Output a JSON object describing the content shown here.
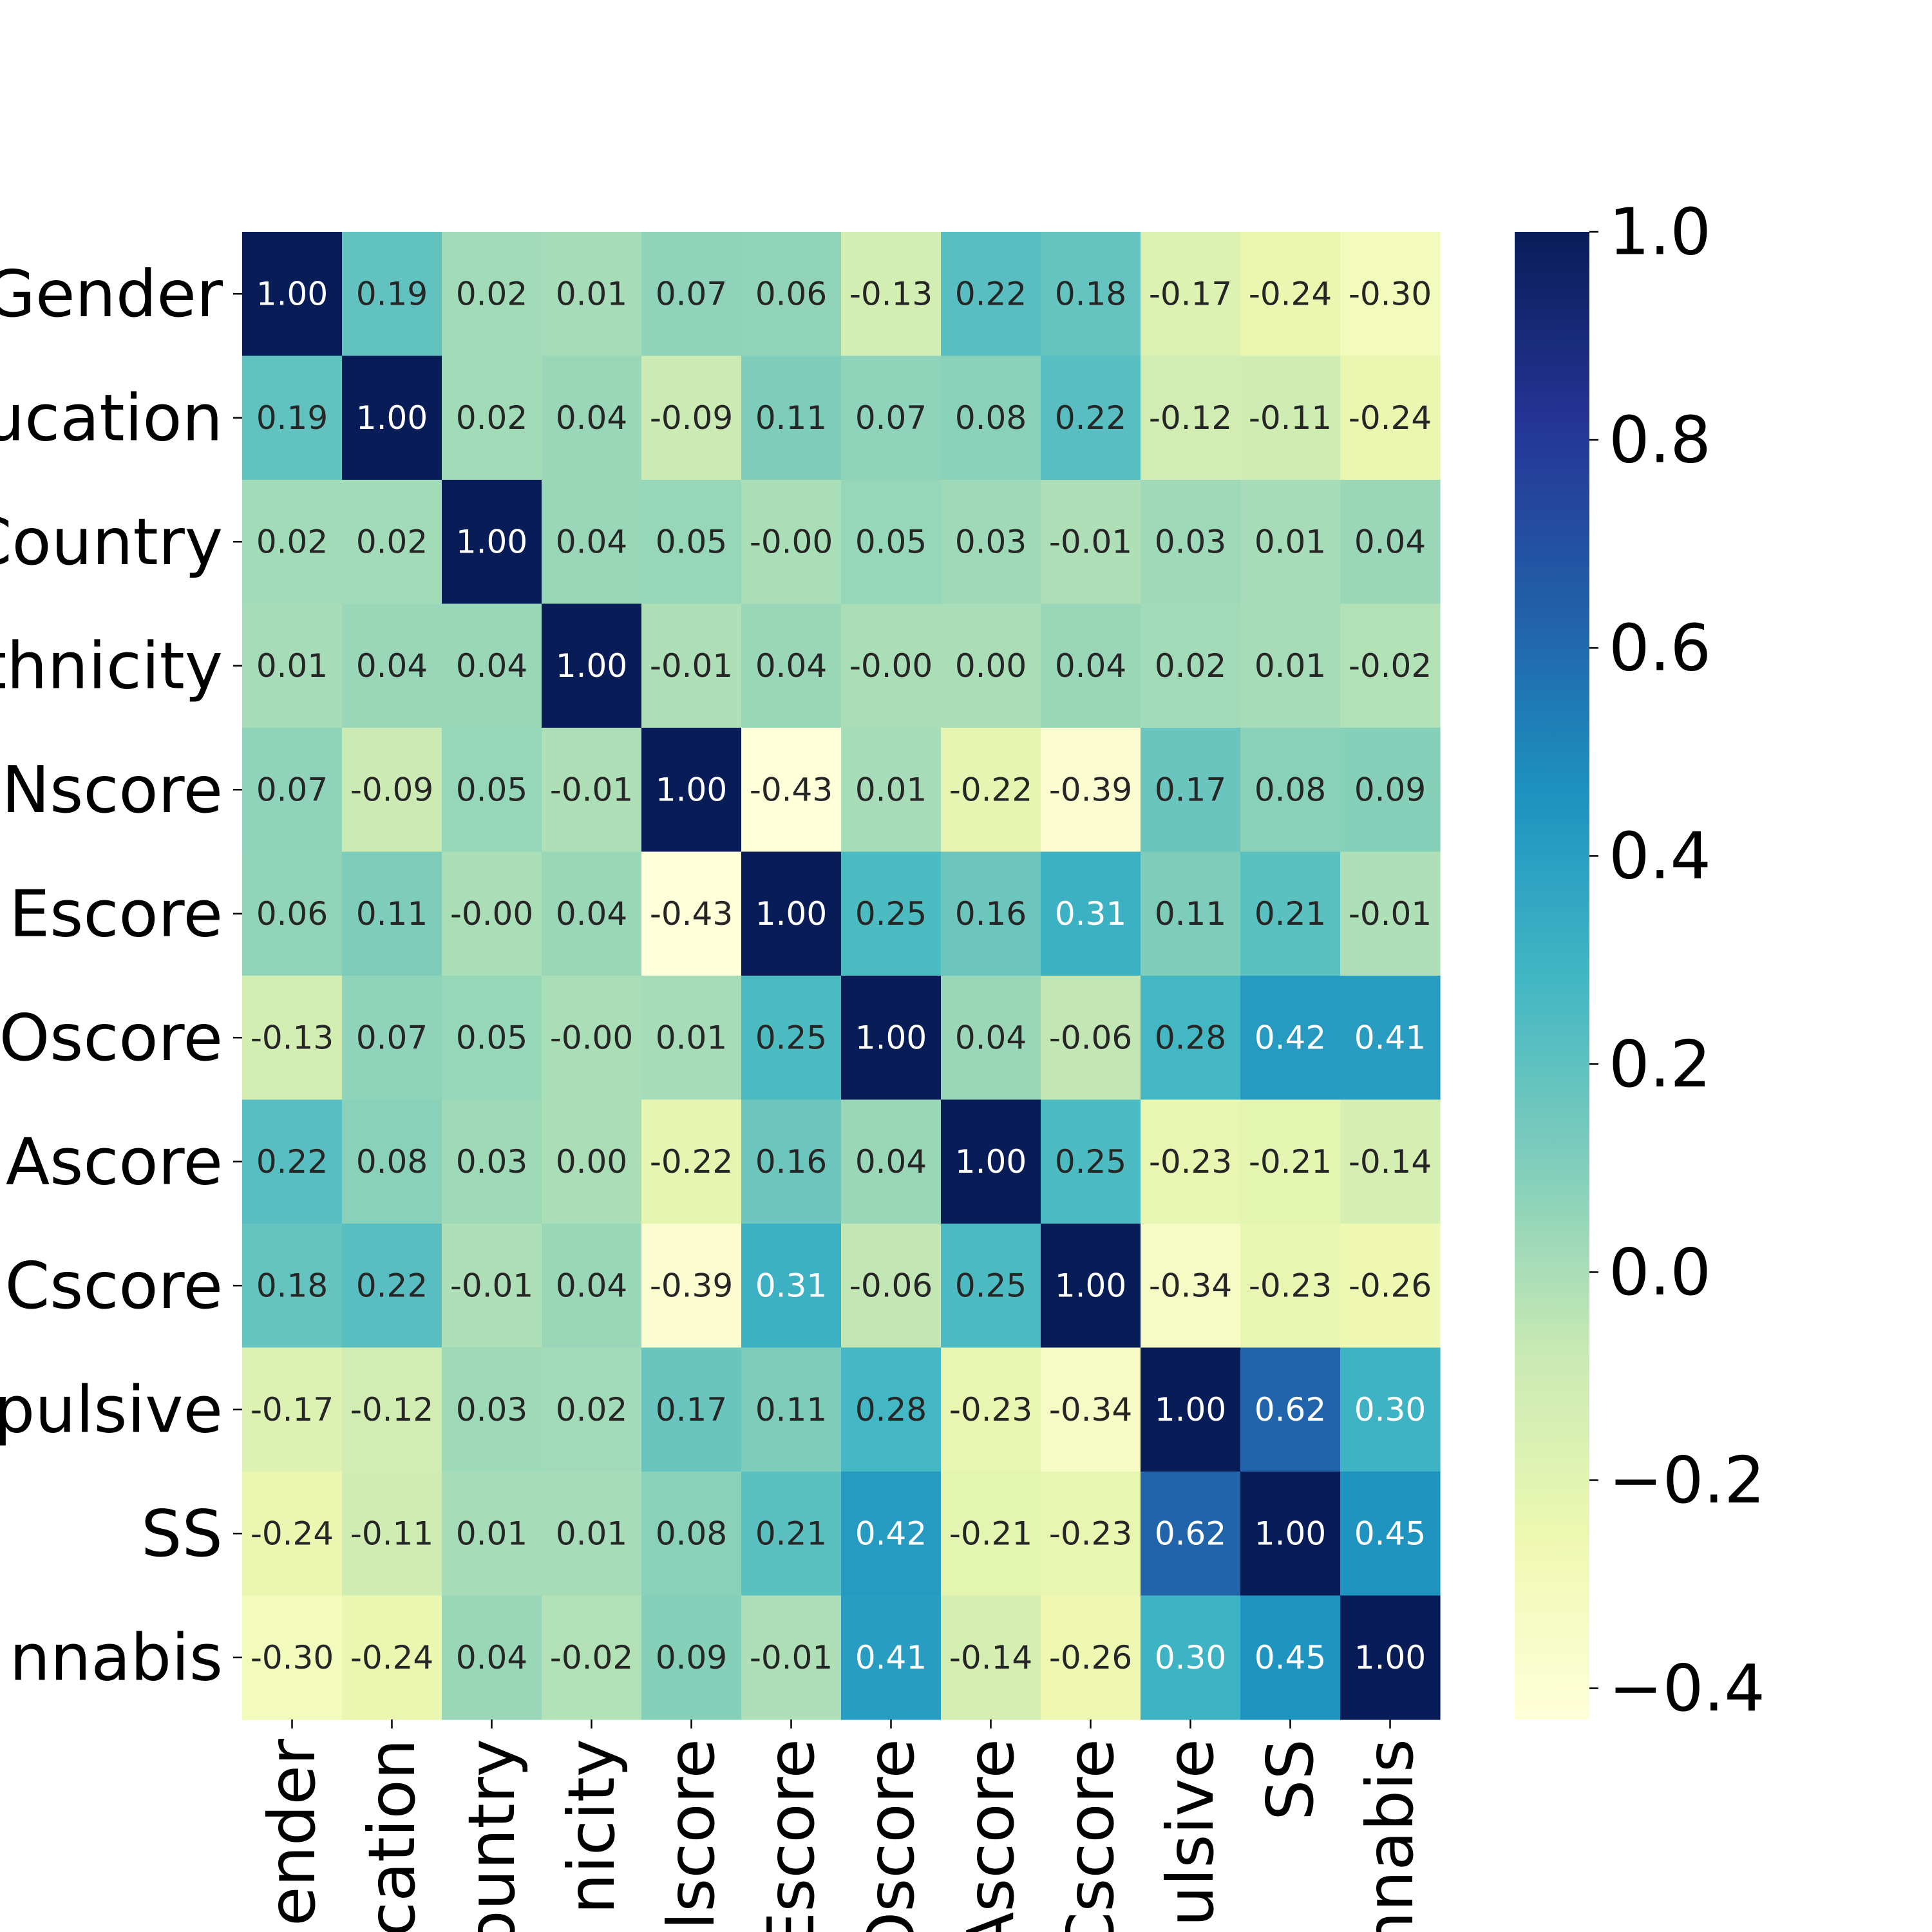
{
  "chart_data": {
    "type": "heatmap",
    "title": "",
    "xlabel": "",
    "ylabel": "",
    "row_labels": [
      "Gender",
      "ucation",
      "Country",
      "thnicity",
      "Nscore",
      "Escore",
      "Oscore",
      "Ascore",
      "Cscore",
      "pulsive",
      "SS",
      "nnabis"
    ],
    "col_labels": [
      "ender",
      "cation",
      "ountry",
      "nicity",
      "lscore",
      "Escore",
      "Oscore",
      "Ascore",
      "Cscore",
      "ulsive",
      "SS",
      "nnabis"
    ],
    "values": [
      [
        1.0,
        0.19,
        0.02,
        0.01,
        0.07,
        0.06,
        -0.13,
        0.22,
        0.18,
        -0.17,
        -0.24,
        -0.3
      ],
      [
        0.19,
        1.0,
        0.02,
        0.04,
        -0.09,
        0.11,
        0.07,
        0.08,
        0.22,
        -0.12,
        -0.11,
        -0.24
      ],
      [
        0.02,
        0.02,
        1.0,
        0.04,
        0.05,
        -0.0,
        0.05,
        0.03,
        -0.01,
        0.03,
        0.01,
        0.04
      ],
      [
        0.01,
        0.04,
        0.04,
        1.0,
        -0.01,
        0.04,
        -0.0,
        0.0,
        0.04,
        0.02,
        0.01,
        -0.02
      ],
      [
        0.07,
        -0.09,
        0.05,
        -0.01,
        1.0,
        -0.43,
        0.01,
        -0.22,
        -0.39,
        0.17,
        0.08,
        0.09
      ],
      [
        0.06,
        0.11,
        -0.0,
        0.04,
        -0.43,
        1.0,
        0.25,
        0.16,
        0.31,
        0.11,
        0.21,
        -0.01
      ],
      [
        -0.13,
        0.07,
        0.05,
        -0.0,
        0.01,
        0.25,
        1.0,
        0.04,
        -0.06,
        0.28,
        0.42,
        0.41
      ],
      [
        0.22,
        0.08,
        0.03,
        0.0,
        -0.22,
        0.16,
        0.04,
        1.0,
        0.25,
        -0.23,
        -0.21,
        -0.14
      ],
      [
        0.18,
        0.22,
        -0.01,
        0.04,
        -0.39,
        0.31,
        -0.06,
        0.25,
        1.0,
        -0.34,
        -0.23,
        -0.26
      ],
      [
        -0.17,
        -0.12,
        0.03,
        0.02,
        0.17,
        0.11,
        0.28,
        -0.23,
        -0.34,
        1.0,
        0.62,
        0.3
      ],
      [
        -0.24,
        -0.11,
        0.01,
        0.01,
        0.08,
        0.21,
        0.42,
        -0.21,
        -0.23,
        0.62,
        1.0,
        0.45
      ],
      [
        -0.3,
        -0.24,
        0.04,
        -0.02,
        0.09,
        -0.01,
        0.41,
        -0.14,
        -0.26,
        0.3,
        0.45,
        1.0
      ]
    ],
    "vmin": -0.43,
    "vmax": 1.0,
    "colormap": "YlGnBu",
    "annotation_format": "0.00",
    "colorbar": {
      "position": "right",
      "ticks": [
        1.0,
        0.8,
        0.6,
        0.4,
        0.2,
        0.0,
        -0.2,
        -0.4
      ],
      "tick_labels": [
        "1.0",
        "0.8",
        "0.6",
        "0.4",
        "0.2",
        "0.0",
        "−0.2",
        "−0.4"
      ]
    },
    "grid": false
  }
}
